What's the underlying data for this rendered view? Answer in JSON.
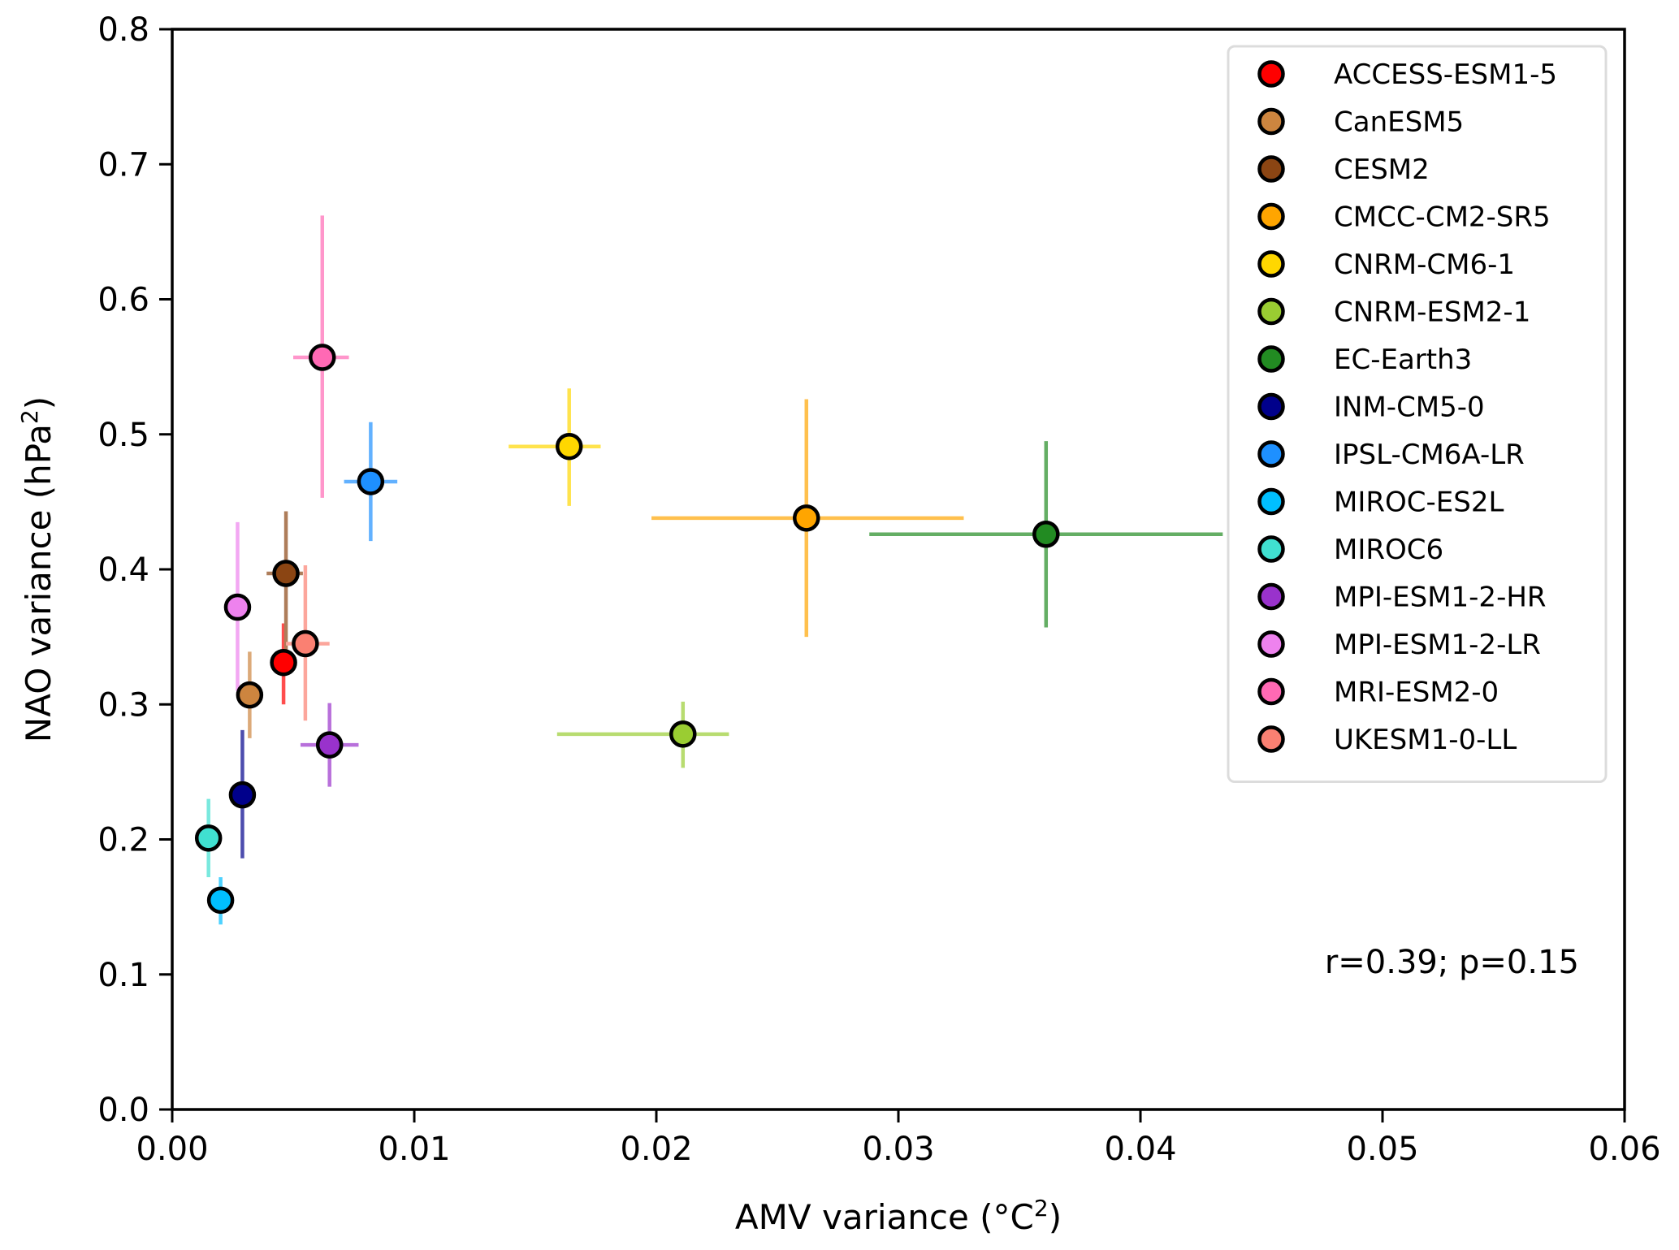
{
  "chart_data": {
    "type": "scatter",
    "title": "",
    "xlabel": "AMV variance (°C",
    "xlabel_sup": "2",
    "xlabel_end": ")",
    "ylabel": "NAO variance (hPa",
    "ylabel_sup": "2",
    "ylabel_end": ")",
    "xlim": [
      0.0,
      0.06
    ],
    "ylim": [
      0.0,
      0.8
    ],
    "xticks": [
      0.0,
      0.01,
      0.02,
      0.03,
      0.04,
      0.05,
      0.06
    ],
    "xtick_labels": [
      "0.00",
      "0.01",
      "0.02",
      "0.03",
      "0.04",
      "0.05",
      "0.06"
    ],
    "yticks": [
      0.0,
      0.1,
      0.2,
      0.3,
      0.4,
      0.5,
      0.6,
      0.7,
      0.8
    ],
    "ytick_labels": [
      "0.0",
      "0.1",
      "0.2",
      "0.3",
      "0.4",
      "0.5",
      "0.6",
      "0.7",
      "0.8"
    ],
    "grid": false,
    "legend_position": "top-right",
    "annotation": "r=0.39; p=0.15",
    "annotation_position": "bottom-right",
    "series": [
      {
        "name": "ACCESS-ESM1-5",
        "color": "#ff0000",
        "x": 0.0046,
        "y": 0.331,
        "xerr": null,
        "yerr": [
          0.3,
          0.36
        ]
      },
      {
        "name": "CanESM5",
        "color": "#cd853f",
        "x": 0.0032,
        "y": 0.307,
        "xerr": null,
        "yerr": [
          0.275,
          0.339
        ]
      },
      {
        "name": "CESM2",
        "color": "#8b4513",
        "x": 0.0047,
        "y": 0.397,
        "xerr": [
          0.0039,
          0.0054
        ],
        "yerr": [
          0.337,
          0.443
        ]
      },
      {
        "name": "CMCC-CM2-SR5",
        "color": "#ffa500",
        "x": 0.0262,
        "y": 0.438,
        "xerr": [
          0.0198,
          0.0327
        ],
        "yerr": [
          0.35,
          0.526
        ]
      },
      {
        "name": "CNRM-CM6-1",
        "color": "#ffd700",
        "x": 0.0164,
        "y": 0.491,
        "xerr": [
          0.0139,
          0.0177
        ],
        "yerr": [
          0.447,
          0.534
        ]
      },
      {
        "name": "CNRM-ESM2-1",
        "color": "#9acd32",
        "x": 0.0211,
        "y": 0.278,
        "xerr": [
          0.0159,
          0.023
        ],
        "yerr": [
          0.253,
          0.302
        ]
      },
      {
        "name": "EC-Earth3",
        "color": "#228b22",
        "x": 0.0361,
        "y": 0.426,
        "xerr": [
          0.0288,
          0.0434
        ],
        "yerr": [
          0.357,
          0.495
        ]
      },
      {
        "name": "INM-CM5-0",
        "color": "#00008b",
        "x": 0.0029,
        "y": 0.233,
        "xerr": null,
        "yerr": [
          0.186,
          0.281
        ]
      },
      {
        "name": "IPSL-CM6A-LR",
        "color": "#1e90ff",
        "x": 0.0082,
        "y": 0.465,
        "xerr": [
          0.0071,
          0.0093
        ],
        "yerr": [
          0.421,
          0.509
        ]
      },
      {
        "name": "MIROC-ES2L",
        "color": "#00bfff",
        "x": 0.002,
        "y": 0.155,
        "xerr": null,
        "yerr": [
          0.137,
          0.172
        ]
      },
      {
        "name": "MIROC6",
        "color": "#40e0d0",
        "x": 0.0015,
        "y": 0.201,
        "xerr": null,
        "yerr": [
          0.172,
          0.23
        ]
      },
      {
        "name": "MPI-ESM1-2-HR",
        "color": "#9932cc",
        "x": 0.0065,
        "y": 0.27,
        "xerr": [
          0.0053,
          0.0077
        ],
        "yerr": [
          0.239,
          0.301
        ]
      },
      {
        "name": "MPI-ESM1-2-LR",
        "color": "#ee82ee",
        "x": 0.0027,
        "y": 0.372,
        "xerr": null,
        "yerr": [
          0.31,
          0.435
        ]
      },
      {
        "name": "MRI-ESM2-0",
        "color": "#ff69b4",
        "x": 0.0062,
        "y": 0.557,
        "xerr": [
          0.005,
          0.0073
        ],
        "yerr": [
          0.453,
          0.662
        ]
      },
      {
        "name": "UKESM1-0-LL",
        "color": "#fa8072",
        "x": 0.0055,
        "y": 0.345,
        "xerr": [
          0.0047,
          0.0065
        ],
        "yerr": [
          0.288,
          0.403
        ]
      }
    ]
  }
}
